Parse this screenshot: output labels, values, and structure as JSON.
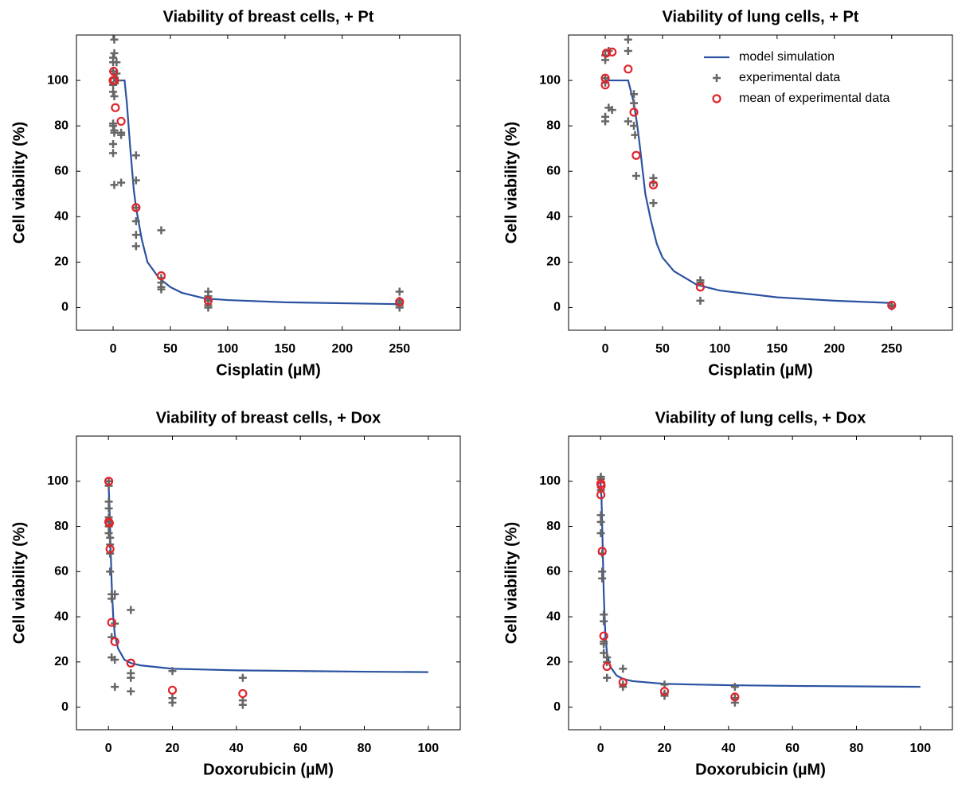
{
  "chart_data": [
    {
      "type": "line",
      "title": "Viability of breast cells, + Pt",
      "x_label": "Cisplatin (µM)",
      "y_label": "Cell viability (%)",
      "xlim": [
        -32,
        303
      ],
      "ylim": [
        -10,
        120
      ],
      "xticks": [
        0,
        50,
        100,
        150,
        200,
        250
      ],
      "yticks": [
        0,
        20,
        40,
        60,
        80,
        100
      ],
      "series": [
        {
          "style": "line",
          "color": "#2a52a0",
          "x": [
            0,
            5,
            10,
            12,
            15,
            18,
            20,
            25,
            30,
            40,
            50,
            60,
            80,
            100,
            150,
            200,
            250
          ],
          "values": [
            100,
            100,
            100,
            90,
            70,
            52,
            44,
            30,
            20,
            13,
            9,
            6.5,
            4,
            3.3,
            2.3,
            1.9,
            1.5
          ]
        },
        {
          "style": "plus",
          "color": "#666666",
          "x": [
            1,
            1,
            0,
            0,
            0,
            1,
            0,
            0,
            1,
            0,
            0,
            1,
            1,
            0,
            0,
            1,
            3,
            3,
            4,
            7,
            7,
            7,
            20,
            20,
            20,
            20,
            20,
            20,
            42,
            42,
            42,
            42,
            42,
            83,
            83,
            83,
            83,
            83,
            250,
            250,
            250,
            250,
            250
          ],
          "values": [
            118,
            112,
            110,
            108,
            104,
            101,
            98,
            95,
            93,
            81,
            80,
            78,
            77,
            72,
            68,
            54,
            108,
            103,
            100,
            77,
            76,
            55,
            67,
            56,
            44,
            38,
            32,
            27,
            34,
            13,
            11,
            9,
            8,
            7,
            5,
            3,
            1,
            0,
            7,
            3,
            2,
            1,
            0
          ]
        },
        {
          "style": "circle",
          "color": "#e0242b",
          "x": [
            0,
            0.5,
            1,
            2,
            7,
            20,
            42,
            83,
            250
          ],
          "values": [
            100,
            104,
            100,
            88,
            82,
            44,
            14,
            3,
            2.5
          ]
        }
      ]
    },
    {
      "type": "line",
      "title": "Viability of lung cells, + Pt",
      "x_label": "Cisplatin (µM)",
      "y_label": "Cell viability (%)",
      "xlim": [
        -32,
        303
      ],
      "ylim": [
        -10,
        120
      ],
      "xticks": [
        0,
        50,
        100,
        150,
        200,
        250
      ],
      "yticks": [
        0,
        20,
        40,
        60,
        80,
        100
      ],
      "legend": "upper right",
      "series": [
        {
          "name": "model simulation",
          "style": "line",
          "color": "#2a52a0",
          "x": [
            0,
            15,
            20,
            25,
            28,
            30,
            35,
            40,
            45,
            50,
            60,
            80,
            100,
            150,
            200,
            250
          ],
          "values": [
            100,
            100,
            100,
            90,
            80,
            72,
            50,
            38,
            28,
            22,
            16,
            10,
            7.5,
            4.5,
            3,
            2
          ]
        },
        {
          "name": "experimental data",
          "style": "plus",
          "color": "#666666",
          "x": [
            0,
            0,
            0,
            0,
            0,
            0,
            3,
            3,
            6,
            20,
            20,
            20,
            25,
            25,
            25,
            26,
            27,
            42,
            42,
            42,
            83,
            83,
            83,
            250,
            250
          ],
          "values": [
            111,
            109,
            101,
            99,
            84,
            82,
            113,
            88,
            87,
            118,
            113,
            82,
            94,
            90,
            80,
            76,
            58,
            57,
            55,
            46,
            12,
            11,
            3,
            1,
            0.5
          ]
        },
        {
          "name": "mean of experimental data",
          "style": "circle",
          "color": "#e0242b",
          "x": [
            0,
            0,
            1,
            6,
            20,
            25,
            27,
            42,
            83,
            250
          ],
          "values": [
            98,
            101,
            112,
            112.5,
            105,
            86,
            67,
            54,
            9,
            1
          ]
        }
      ]
    },
    {
      "type": "line",
      "title": "Viability of breast cells, + Dox",
      "x_label": "Doxorubicin (µM)",
      "y_label": "Cell viability (%)",
      "xlim": [
        -10,
        110
      ],
      "ylim": [
        -10,
        120
      ],
      "xticks": [
        0,
        20,
        40,
        60,
        80,
        100
      ],
      "yticks": [
        0,
        20,
        40,
        60,
        80,
        100
      ],
      "series": [
        {
          "style": "line",
          "color": "#2a52a0",
          "x": [
            0,
            0.3,
            0.6,
            1,
            1.5,
            2,
            3,
            5,
            7,
            10,
            20,
            40,
            60,
            80,
            100
          ],
          "values": [
            100,
            90,
            75,
            55,
            40,
            32,
            26,
            21,
            19.5,
            18.5,
            17,
            16.3,
            16,
            15.7,
            15.5
          ]
        },
        {
          "style": "plus",
          "color": "#666666",
          "x": [
            0.1,
            0.1,
            0.1,
            0.1,
            0.1,
            0.1,
            0.1,
            0.1,
            0.5,
            0.5,
            0.5,
            0.5,
            1,
            1,
            1,
            1,
            2,
            2,
            2,
            2,
            7,
            7,
            7,
            7,
            20,
            20,
            20,
            42,
            42,
            42
          ],
          "values": [
            100,
            98,
            91,
            88,
            84,
            82,
            80,
            77,
            75,
            72,
            68,
            60,
            50,
            48,
            31,
            22,
            50,
            37,
            21,
            9,
            43,
            15,
            13,
            7,
            16,
            4,
            2,
            13,
            3,
            1
          ]
        },
        {
          "style": "circle",
          "color": "#e0242b",
          "x": [
            0.1,
            0.1,
            0.3,
            0.5,
            1,
            2,
            7,
            20,
            42
          ],
          "values": [
            100,
            82,
            81.5,
            70,
            37.5,
            29,
            19.5,
            7.5,
            6
          ]
        }
      ]
    },
    {
      "type": "line",
      "title": "Viability of lung cells, + Dox",
      "x_label": "Doxorubicin (µM)",
      "y_label": "Cell viability (%)",
      "xlim": [
        -10,
        110
      ],
      "ylim": [
        -10,
        120
      ],
      "xticks": [
        0,
        20,
        40,
        60,
        80,
        100
      ],
      "yticks": [
        0,
        20,
        40,
        60,
        80,
        100
      ],
      "series": [
        {
          "style": "line",
          "color": "#2a52a0",
          "x": [
            0,
            0.3,
            0.6,
            1,
            1.5,
            2,
            3,
            5,
            7,
            10,
            20,
            40,
            60,
            80,
            100
          ],
          "values": [
            100,
            92,
            75,
            50,
            32,
            24,
            18,
            14,
            12.5,
            11.5,
            10.3,
            9.7,
            9.4,
            9.2,
            9
          ]
        },
        {
          "style": "plus",
          "color": "#666666",
          "x": [
            0.1,
            0.1,
            0.1,
            0.1,
            0.1,
            0.1,
            0.5,
            0.5,
            0.5,
            1,
            1,
            1,
            1,
            1,
            2,
            2,
            2,
            7,
            7,
            7,
            20,
            20,
            20,
            42,
            42,
            42
          ],
          "values": [
            102,
            101,
            96,
            85,
            82,
            77,
            68,
            60,
            57,
            41,
            38,
            29,
            28,
            24,
            22,
            20,
            13,
            17,
            10,
            9,
            10,
            6,
            5,
            9,
            4,
            2
          ]
        },
        {
          "style": "circle",
          "color": "#e0242b",
          "x": [
            0.1,
            0.2,
            0.1,
            0.5,
            1,
            2,
            7,
            20,
            42
          ],
          "values": [
            99,
            98,
            94,
            69,
            31.5,
            18,
            11,
            7,
            4.5
          ]
        }
      ]
    }
  ]
}
